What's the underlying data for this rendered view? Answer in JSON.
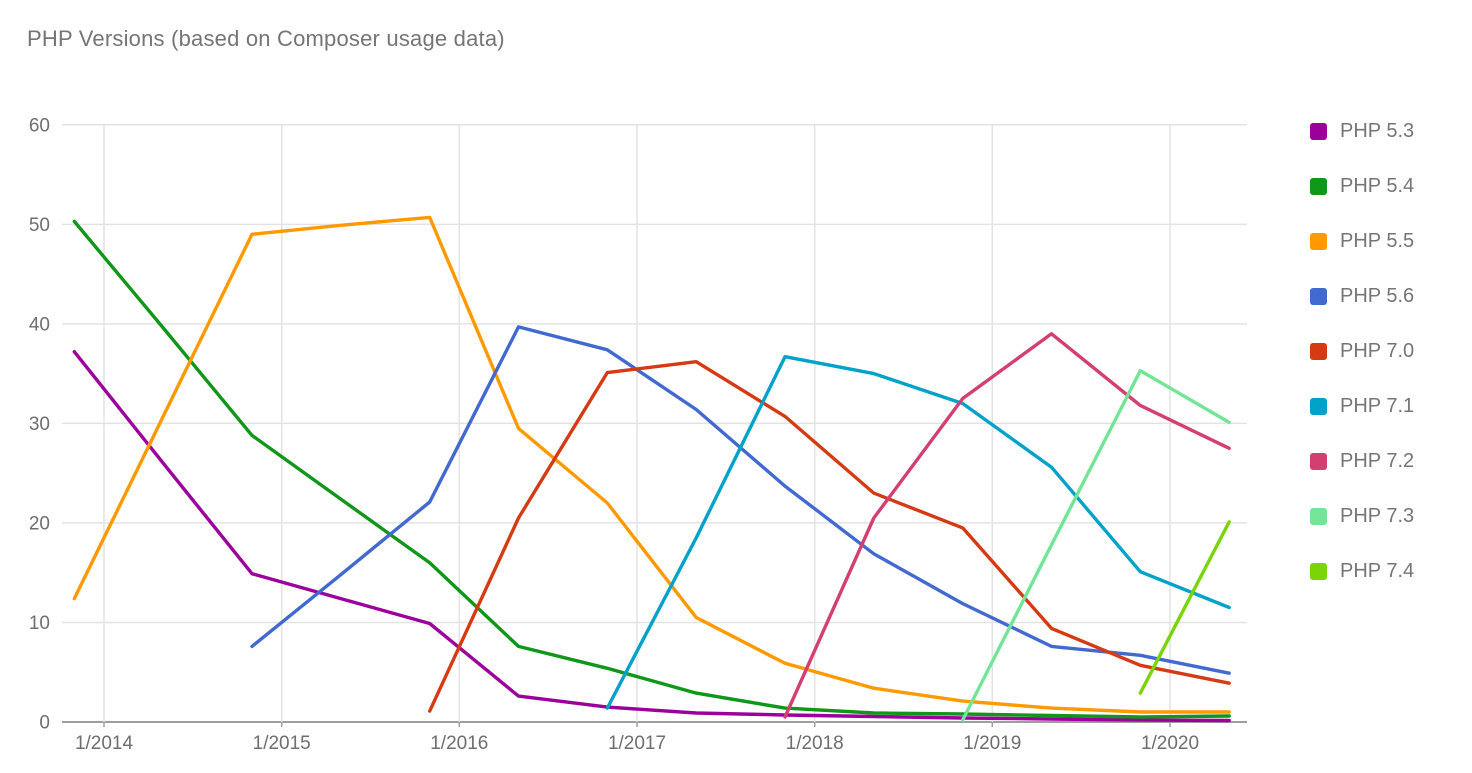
{
  "title": "PHP Versions (based on Composer usage data)",
  "chart_data": {
    "type": "line",
    "title": "PHP Versions (based on Composer usage data)",
    "x_unit": "decimal_year",
    "x": [
      2013.833,
      2014.333,
      2014.833,
      2015.333,
      2015.833,
      2016.333,
      2016.833,
      2017.333,
      2017.833,
      2018.333,
      2018.833,
      2019.333,
      2019.833,
      2020.333
    ],
    "x_tick_years": [
      2014,
      2015,
      2016,
      2017,
      2018,
      2019,
      2020
    ],
    "x_tick_labels": [
      "1/2014",
      "1/2015",
      "1/2016",
      "1/2017",
      "1/2018",
      "1/2019",
      "1/2020"
    ],
    "y_ticks": [
      0,
      10,
      20,
      30,
      40,
      50,
      60
    ],
    "ylim": [
      0,
      60
    ],
    "xlim": [
      2013.76,
      2020.43
    ],
    "grid": true,
    "legend_position": "right",
    "series": [
      {
        "name": "PHP 5.3",
        "color": "#9c009c",
        "values": [
          37.2,
          26.0,
          14.9,
          12.4,
          9.9,
          2.6,
          1.5,
          0.9,
          0.7,
          0.55,
          0.4,
          0.3,
          0.2,
          0.15
        ]
      },
      {
        "name": "PHP 5.4",
        "color": "#109618",
        "values": [
          50.3,
          39.6,
          28.8,
          22.4,
          16.0,
          7.6,
          5.4,
          2.9,
          1.4,
          0.9,
          0.8,
          0.65,
          0.5,
          0.6
        ]
      },
      {
        "name": "PHP 5.5",
        "color": "#ff9900",
        "values": [
          12.4,
          30.7,
          49.0,
          49.9,
          50.7,
          29.5,
          22.0,
          10.5,
          5.9,
          3.4,
          2.1,
          1.4,
          1.0,
          1.0
        ]
      },
      {
        "name": "PHP 5.6",
        "color": "#4169cf",
        "values": [
          null,
          null,
          7.6,
          14.8,
          22.1,
          39.7,
          37.4,
          31.4,
          23.7,
          16.9,
          11.9,
          7.6,
          6.7,
          4.9
        ]
      },
      {
        "name": "PHP 7.0",
        "color": "#d53a13",
        "values": [
          null,
          null,
          null,
          null,
          1.1,
          20.5,
          35.1,
          36.2,
          30.7,
          23.0,
          19.5,
          9.4,
          5.7,
          3.9
        ]
      },
      {
        "name": "PHP 7.1",
        "color": "#00a2c9",
        "values": [
          null,
          null,
          null,
          null,
          null,
          null,
          1.4,
          18.5,
          36.7,
          35.0,
          32.0,
          25.6,
          15.1,
          11.5
        ]
      },
      {
        "name": "PHP 7.2",
        "color": "#d43f72",
        "values": [
          null,
          null,
          null,
          null,
          null,
          null,
          null,
          null,
          0.5,
          20.5,
          32.5,
          39.0,
          31.8,
          27.5
        ]
      },
      {
        "name": "PHP 7.3",
        "color": "#74e598",
        "values": [
          null,
          null,
          null,
          null,
          null,
          null,
          null,
          null,
          null,
          null,
          0.2,
          17.8,
          35.3,
          30.1
        ]
      },
      {
        "name": "PHP 7.4",
        "color": "#79d408",
        "values": [
          null,
          null,
          null,
          null,
          null,
          null,
          null,
          null,
          null,
          null,
          null,
          null,
          2.9,
          20.1
        ]
      }
    ]
  },
  "colors": {
    "title_text": "#757575",
    "axis_label": "#6e6e6e",
    "gridline": "#e3e3e3",
    "baseline": "#9e9e9e",
    "legend_label": "#757575",
    "background": "#ffffff"
  }
}
